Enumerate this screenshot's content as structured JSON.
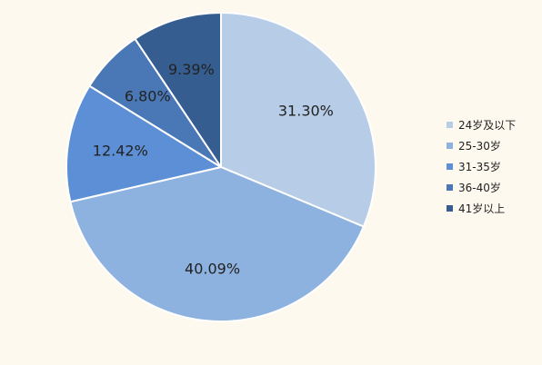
{
  "chart_data": {
    "type": "pie",
    "categories": [
      "24岁及以下",
      "25-30岁",
      "31-35岁",
      "36-40岁",
      "41岁以上"
    ],
    "values": [
      31.3,
      40.09,
      12.42,
      6.8,
      9.39
    ],
    "value_labels": [
      "31.30%",
      "40.09%",
      "12.42%",
      "6.80%",
      "9.39%"
    ],
    "colors": [
      "#b7cce6",
      "#8eb2e0",
      "#5c8fd6",
      "#4a78b6",
      "#355d8f"
    ],
    "start": "12 o'clock",
    "direction": "clockwise",
    "legend_position": "right"
  }
}
